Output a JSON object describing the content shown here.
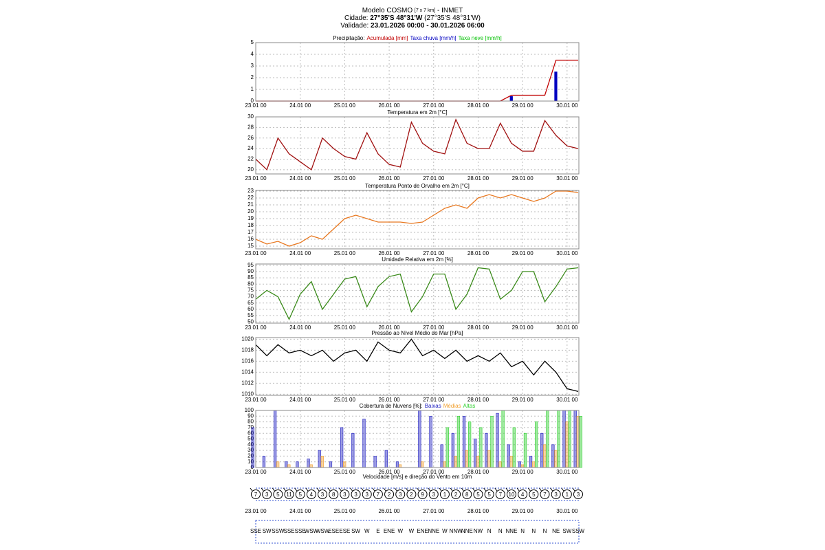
{
  "header": {
    "model": "Modelo COSMO",
    "resolution": "[7 x 7 km]",
    "source": "- INMET",
    "city_label": "Cidade:",
    "city": "27°35'S 48°31'W",
    "city_alt": "(27°35'S 48°31'W)",
    "validity_label": "Validade:",
    "validity": "23.01.2026 00:00 - 30.01.2026 06:00"
  },
  "chart_data": [
    {
      "type": "bar",
      "title": "Precipitação:",
      "categories": [
        "23.01 00",
        null,
        null,
        null,
        "24.01 00",
        null,
        null,
        null,
        "25.01 00",
        null,
        null,
        null,
        "26.01 00",
        null,
        null,
        null,
        "27.01 00",
        null,
        null,
        null,
        "28.01 00",
        null,
        null,
        null,
        "29.01 00",
        null,
        null,
        null,
        "30.01 00",
        null
      ],
      "series": [
        {
          "name": "Acumulada [mm]",
          "color": "#c00000",
          "kind": "line",
          "values": [
            0,
            0,
            0,
            0,
            0,
            0,
            0,
            0,
            0,
            0,
            0,
            0,
            0,
            0,
            0,
            0,
            0,
            0,
            0,
            0,
            0,
            0,
            0,
            0.5,
            0.5,
            0.5,
            0.5,
            3.5,
            3.5,
            3.5
          ]
        },
        {
          "name": "Taxa chuva [mm/h]",
          "color": "#0000c0",
          "kind": "bar",
          "values": [
            0,
            0,
            0,
            0,
            0,
            0,
            0,
            0,
            0,
            0,
            0,
            0,
            0,
            0,
            0,
            0,
            0,
            0,
            0,
            0,
            0,
            0,
            0,
            0.4,
            0,
            0,
            0,
            2.5,
            0,
            0
          ]
        },
        {
          "name": "Taxa neve [mm/h]",
          "color": "#00c000",
          "kind": "bar",
          "values": [
            0,
            0,
            0,
            0,
            0,
            0,
            0,
            0,
            0,
            0,
            0,
            0,
            0,
            0,
            0,
            0,
            0,
            0,
            0,
            0,
            0,
            0,
            0,
            0,
            0,
            0,
            0,
            0,
            0,
            0
          ]
        }
      ],
      "ylim": [
        0,
        5
      ],
      "yticks": [
        0,
        1,
        2,
        3,
        4,
        5
      ],
      "grid": true
    },
    {
      "type": "line",
      "title": "Temperatura em 2m [°C]",
      "categories": [
        "23.01 00",
        null,
        null,
        null,
        "24.01 00",
        null,
        null,
        null,
        "25.01 00",
        null,
        null,
        null,
        "26.01 00",
        null,
        null,
        null,
        "27.01 00",
        null,
        null,
        null,
        "28.01 00",
        null,
        null,
        null,
        "29.01 00",
        null,
        null,
        null,
        "30.01 00",
        null
      ],
      "color": "#a01010",
      "values": [
        22,
        20,
        26,
        23,
        21.5,
        20,
        26,
        24,
        22.5,
        22,
        27,
        23,
        21,
        20.5,
        29,
        25,
        23.5,
        23,
        29.5,
        25,
        24,
        24,
        28.8,
        25,
        23.5,
        23.5,
        29.3,
        26.5,
        24.5,
        24
      ],
      "ylim": [
        19.2,
        30
      ],
      "yticks": [
        20,
        22,
        24,
        26,
        28,
        30
      ],
      "grid": true
    },
    {
      "type": "line",
      "title": "Temperatura Ponto de Orvalho em 2m [°C]",
      "categories": [
        "23.01 00",
        null,
        null,
        null,
        "24.01 00",
        null,
        null,
        null,
        "25.01 00",
        null,
        null,
        null,
        "26.01 00",
        null,
        null,
        null,
        "27.01 00",
        null,
        null,
        null,
        "28.01 00",
        null,
        null,
        null,
        "29.01 00",
        null,
        null,
        null,
        "30.01 00",
        null
      ],
      "color": "#e87820",
      "values": [
        16,
        15.3,
        15.7,
        15,
        15.5,
        16.5,
        16,
        17.5,
        19,
        19.5,
        19,
        18.5,
        18.5,
        18.5,
        18.3,
        18.5,
        19.5,
        20.5,
        21,
        20.5,
        22,
        22.5,
        22,
        22.5,
        22,
        21.5,
        22,
        23,
        23,
        22.8
      ],
      "ylim": [
        14.6,
        23.1
      ],
      "yticks": [
        15,
        16,
        17,
        18,
        19,
        20,
        21,
        22,
        23
      ],
      "grid": true
    },
    {
      "type": "line",
      "title": "Umidade Relativa em 2m [%]",
      "categories": [
        "23.01 00",
        null,
        null,
        null,
        "24.01 00",
        null,
        null,
        null,
        "25.01 00",
        null,
        null,
        null,
        "26.01 00",
        null,
        null,
        null,
        "27.01 00",
        null,
        null,
        null,
        "28.01 00",
        null,
        null,
        null,
        "29.01 00",
        null,
        null,
        null,
        "30.01 00",
        null
      ],
      "color": "#3a8a1a",
      "values": [
        68,
        75,
        70,
        52,
        72,
        82,
        60,
        72,
        84,
        86,
        62,
        78,
        86,
        88,
        58,
        70,
        88,
        88,
        60,
        72,
        93,
        92,
        68,
        75,
        90,
        90,
        66,
        78,
        92,
        93
      ],
      "ylim": [
        49,
        96
      ],
      "yticks": [
        50,
        55,
        60,
        65,
        70,
        75,
        80,
        85,
        90,
        95
      ],
      "grid": true
    },
    {
      "type": "line",
      "title": "Pressão ao Nível Médio do Mar [hPa]",
      "categories": [
        "23.01 00",
        null,
        null,
        null,
        "24.01 00",
        null,
        null,
        null,
        "25.01 00",
        null,
        null,
        null,
        "26.01 00",
        null,
        null,
        null,
        "27.01 00",
        null,
        null,
        null,
        "28.01 00",
        null,
        null,
        null,
        "29.01 00",
        null,
        null,
        null,
        "30.01 00",
        null
      ],
      "color": "#000000",
      "values": [
        1019,
        1017,
        1019,
        1017.5,
        1018,
        1017,
        1018,
        1016,
        1017.5,
        1018,
        1016,
        1019.5,
        1018,
        1017.5,
        1020,
        1017,
        1018,
        1016.5,
        1018,
        1016,
        1017,
        1016,
        1017.5,
        1015,
        1016,
        1013.5,
        1016,
        1014,
        1011,
        1010.5
      ],
      "ylim": [
        1009.8,
        1020.3
      ],
      "yticks": [
        1010,
        1012,
        1014,
        1016,
        1018,
        1020
      ],
      "grid": true
    },
    {
      "type": "bar",
      "title": "Cobertura de Nuvens [%]:",
      "categories": [
        "23.01 00",
        null,
        null,
        null,
        "24.01 00",
        null,
        null,
        null,
        "25.01 00",
        null,
        null,
        null,
        "26.01 00",
        null,
        null,
        null,
        "27.01 00",
        null,
        null,
        null,
        "28.01 00",
        null,
        null,
        null,
        "29.01 00",
        null,
        null,
        null,
        "30.01 00",
        null
      ],
      "series": [
        {
          "name": "Baixas",
          "color": "#2020c0",
          "values": [
            70,
            20,
            100,
            10,
            10,
            15,
            30,
            10,
            70,
            60,
            85,
            20,
            30,
            10,
            0,
            100,
            90,
            40,
            60,
            90,
            50,
            60,
            95,
            40,
            10,
            20,
            60,
            40,
            100,
            100
          ]
        },
        {
          "name": "Médias",
          "color": "#f0a030",
          "values": [
            0,
            0,
            10,
            5,
            0,
            5,
            20,
            0,
            10,
            0,
            0,
            0,
            0,
            5,
            0,
            10,
            0,
            10,
            20,
            30,
            20,
            30,
            10,
            20,
            5,
            10,
            40,
            30,
            80,
            90
          ]
        },
        {
          "name": "Altas",
          "color": "#30d030",
          "values": [
            0,
            0,
            0,
            0,
            0,
            0,
            0,
            0,
            0,
            0,
            0,
            0,
            0,
            0,
            0,
            0,
            0,
            70,
            90,
            80,
            70,
            90,
            100,
            70,
            60,
            80,
            100,
            100,
            100,
            90
          ]
        }
      ],
      "ylim": [
        0,
        100
      ],
      "yticks": [
        0,
        10,
        20,
        30,
        40,
        50,
        60,
        70,
        80,
        90,
        100
      ],
      "grid": true
    },
    {
      "type": "wind",
      "title": "Velocidade [m/s] e direção do Vento em 10m",
      "categories": [
        "23.01 00",
        null,
        null,
        null,
        "24.01 00",
        null,
        null,
        null,
        "25.01 00",
        null,
        null,
        null,
        "26.01 00",
        null,
        null,
        null,
        "27.01 00",
        null,
        null,
        null,
        "28.01 00",
        null,
        null,
        null,
        "29.01 00",
        null,
        null,
        null,
        "30.01 00",
        null
      ],
      "speeds": [
        7,
        3,
        5,
        11,
        5,
        4,
        3,
        8,
        3,
        3,
        3,
        7,
        2,
        3,
        2,
        9,
        3,
        1,
        2,
        8,
        5,
        5,
        7,
        10,
        4,
        5,
        7,
        3,
        1,
        3
      ],
      "directions": [
        "SSE",
        "SW",
        "SSW",
        "SSE",
        "SSE",
        "WSW",
        "WSW",
        "ESE",
        "ESE",
        "SW",
        "W",
        "E",
        "ENE",
        "W",
        "W",
        "ENE",
        "NNE",
        "W",
        "NNW",
        "NNE",
        "NW",
        "N",
        "N",
        "NNE",
        "N",
        "N",
        "N",
        "NE",
        "SW",
        "SSW"
      ]
    }
  ]
}
